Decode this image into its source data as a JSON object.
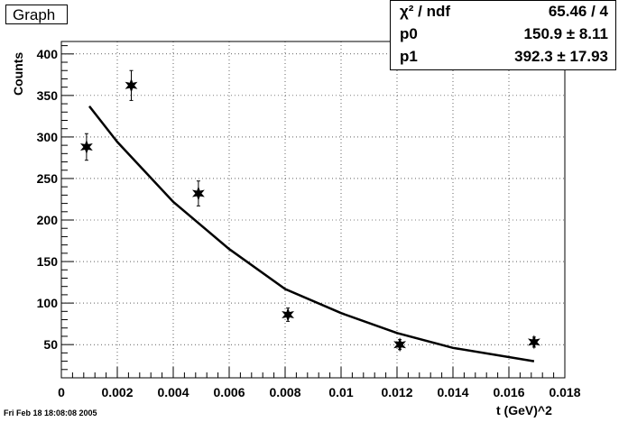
{
  "title": "Graph",
  "stats": [
    {
      "key": "χ² / ndf",
      "value": "65.46 / 4"
    },
    {
      "key": "p0",
      "value": "150.9 ±  8.11"
    },
    {
      "key": "p1",
      "value": "392.3 ± 17.93"
    }
  ],
  "timestamp": "Fri Feb 18 18:08:08 2005",
  "chart_data": {
    "type": "scatter",
    "xlabel": "t (GeV)^2",
    "ylabel": "Counts",
    "xlim": [
      0,
      0.018
    ],
    "ylim": [
      10,
      415
    ],
    "grid": true,
    "x_ticks": [
      "0",
      "0.002",
      "0.004",
      "0.006",
      "0.008",
      "0.01",
      "0.012",
      "0.014",
      "0.016",
      "0.018"
    ],
    "y_ticks": [
      "50",
      "100",
      "150",
      "200",
      "250",
      "300",
      "350",
      "400"
    ],
    "points": [
      {
        "x": 0.0009,
        "y": 288,
        "err": 16
      },
      {
        "x": 0.0025,
        "y": 362,
        "err": 18
      },
      {
        "x": 0.0049,
        "y": 232,
        "err": 15
      },
      {
        "x": 0.0081,
        "y": 86,
        "err": 8
      },
      {
        "x": 0.0121,
        "y": 50,
        "err": 6
      },
      {
        "x": 0.0169,
        "y": 53,
        "err": 6
      }
    ],
    "fit": {
      "p0": 150.9,
      "p1": 392.3,
      "x_range": [
        0.001,
        0.0169
      ],
      "curve": [
        [
          0.001,
          337
        ],
        [
          0.002,
          294
        ],
        [
          0.004,
          222
        ],
        [
          0.006,
          165
        ],
        [
          0.008,
          117
        ],
        [
          0.01,
          88
        ],
        [
          0.012,
          64
        ],
        [
          0.014,
          46
        ],
        [
          0.0169,
          30
        ]
      ]
    }
  }
}
